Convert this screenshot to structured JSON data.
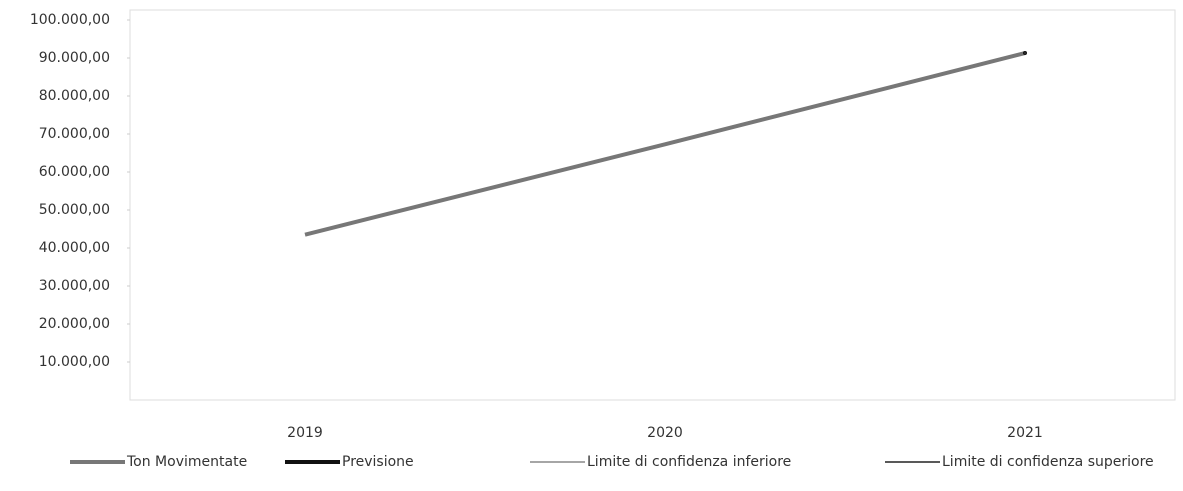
{
  "chart_data": {
    "type": "line",
    "categories": [
      "2019",
      "2020",
      "2021"
    ],
    "series": [
      {
        "name": "Ton Movimentate",
        "color": "#777777",
        "width": 4,
        "values": [
          43500,
          67300,
          91300
        ]
      },
      {
        "name": "Previsione",
        "color": "#111111",
        "width": 4,
        "values": [
          null,
          null,
          91300
        ]
      },
      {
        "name": "Limite di confidenza inferiore",
        "color": "#888888",
        "width": 1.5,
        "values": [
          null,
          null,
          91300
        ]
      },
      {
        "name": "Limite di confidenza superiore",
        "color": "#222222",
        "width": 1.5,
        "values": [
          null,
          null,
          91300
        ]
      }
    ],
    "ylim": [
      0,
      100000
    ],
    "yticks": [
      {
        "value": 10000,
        "label": "10.000,00"
      },
      {
        "value": 20000,
        "label": "20.000,00"
      },
      {
        "value": 30000,
        "label": "30.000,00"
      },
      {
        "value": 40000,
        "label": "40.000,00"
      },
      {
        "value": 50000,
        "label": "50.000,00"
      },
      {
        "value": 60000,
        "label": "60.000,00"
      },
      {
        "value": 70000,
        "label": "70.000,00"
      },
      {
        "value": 80000,
        "label": "80.000,00"
      },
      {
        "value": 90000,
        "label": "90.000,00"
      },
      {
        "value": 100000,
        "label": "100.000,00"
      }
    ],
    "grid": false,
    "legend": "bottom"
  }
}
